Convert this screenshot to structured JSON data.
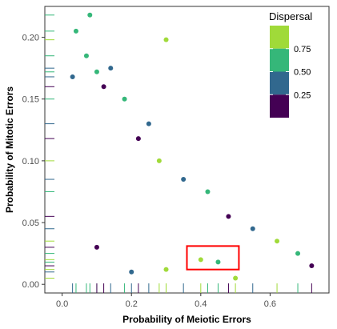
{
  "chart_data": {
    "type": "scatter",
    "xlabel": "Probability of Meiotic Errors",
    "ylabel": "Probability of Mitotic Errors",
    "xlim": [
      -0.05,
      0.77
    ],
    "ylim": [
      -0.007,
      0.225
    ],
    "x_ticks": [
      0.0,
      0.2,
      0.4,
      0.6
    ],
    "x_tick_labels": [
      "0.0",
      "0.2",
      "0.4",
      "0.6"
    ],
    "y_ticks": [
      0.0,
      0.05,
      0.1,
      0.15,
      0.2
    ],
    "y_tick_labels": [
      "0.00",
      "0.05",
      "0.10",
      "0.15",
      "0.20"
    ],
    "grid": false,
    "rug_plots": true,
    "legend": {
      "title": "Dispersal",
      "position": "top-right",
      "colorbar_range": [
        0.0,
        1.0
      ],
      "breaks": [
        0.25,
        0.5,
        0.75
      ],
      "break_labels": [
        "0.25",
        "0.50",
        "0.75"
      ],
      "colors": [
        "#440154",
        "#31688e",
        "#35b779",
        "#a0da39"
      ]
    },
    "highlight_box": {
      "x_range": [
        0.36,
        0.51
      ],
      "y_range": [
        0.012,
        0.031
      ],
      "color": "#ff0000"
    },
    "series": [
      {
        "points": [
          {
            "x": 0.04,
            "y": 0.205,
            "d": 0.6
          },
          {
            "x": 0.07,
            "y": 0.185,
            "d": 0.55
          },
          {
            "x": 0.08,
            "y": 0.218,
            "d": 0.7
          },
          {
            "x": 0.03,
            "y": 0.168,
            "d": 0.4
          },
          {
            "x": 0.1,
            "y": 0.172,
            "d": 0.6
          },
          {
            "x": 0.12,
            "y": 0.16,
            "d": 0.2
          },
          {
            "x": 0.14,
            "y": 0.175,
            "d": 0.45
          },
          {
            "x": 0.18,
            "y": 0.15,
            "d": 0.6
          },
          {
            "x": 0.25,
            "y": 0.13,
            "d": 0.3
          },
          {
            "x": 0.3,
            "y": 0.198,
            "d": 0.98
          },
          {
            "x": 0.22,
            "y": 0.118,
            "d": 0.15
          },
          {
            "x": 0.28,
            "y": 0.1,
            "d": 0.85
          },
          {
            "x": 0.35,
            "y": 0.085,
            "d": 0.3
          },
          {
            "x": 0.42,
            "y": 0.075,
            "d": 0.6
          },
          {
            "x": 0.48,
            "y": 0.055,
            "d": 0.1
          },
          {
            "x": 0.55,
            "y": 0.045,
            "d": 0.35
          },
          {
            "x": 0.62,
            "y": 0.035,
            "d": 0.8
          },
          {
            "x": 0.68,
            "y": 0.025,
            "d": 0.5
          },
          {
            "x": 0.72,
            "y": 0.015,
            "d": 0.2
          },
          {
            "x": 0.4,
            "y": 0.02,
            "d": 0.95
          },
          {
            "x": 0.45,
            "y": 0.018,
            "d": 0.6
          },
          {
            "x": 0.3,
            "y": 0.012,
            "d": 0.75
          },
          {
            "x": 0.2,
            "y": 0.01,
            "d": 0.4
          },
          {
            "x": 0.1,
            "y": 0.03,
            "d": 0.1
          },
          {
            "x": 0.5,
            "y": 0.005,
            "d": 0.9
          }
        ]
      }
    ]
  }
}
